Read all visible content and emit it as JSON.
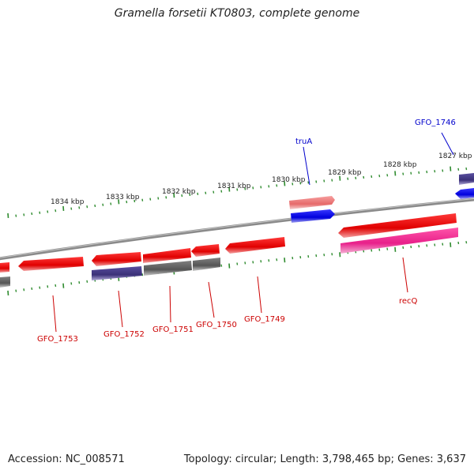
{
  "title": "Gramella forsetii KT0803, complete genome",
  "footer": {
    "accession": "Accession: NC_008571",
    "stats": "Topology: circular; Length: 3,798,465 bp; Genes: 3,637"
  },
  "kbp_labels": [
    "1827 kbp",
    "1828 kbp",
    "1829 kbp",
    "1830 kbp",
    "1831 kbp",
    "1832 kbp",
    "1833 kbp",
    "1834 kbp"
  ],
  "gene_labels": [
    {
      "name": "GFO_1746",
      "color": "#0000cc"
    },
    {
      "name": "truA",
      "color": "#0000cc"
    },
    {
      "name": "recQ",
      "color": "#cc0000"
    },
    {
      "name": "GFO_1749",
      "color": "#cc0000"
    },
    {
      "name": "GFO_1750",
      "color": "#cc0000"
    },
    {
      "name": "GFO_1751",
      "color": "#cc0000"
    },
    {
      "name": "GFO_1752",
      "color": "#cc0000"
    },
    {
      "name": "GFO_1753",
      "color": "#cc0000"
    }
  ],
  "colors": {
    "backbone": "#888888",
    "tick": "#2e8b2e",
    "cds_forward_red": "#ee1111",
    "cds_blue": "#1010ee",
    "cog_purple": "#4a3f8c",
    "cog_gray": "#6a6a6a",
    "cog_pink": "#ee3399",
    "cog_salmon": "#ee7777"
  }
}
